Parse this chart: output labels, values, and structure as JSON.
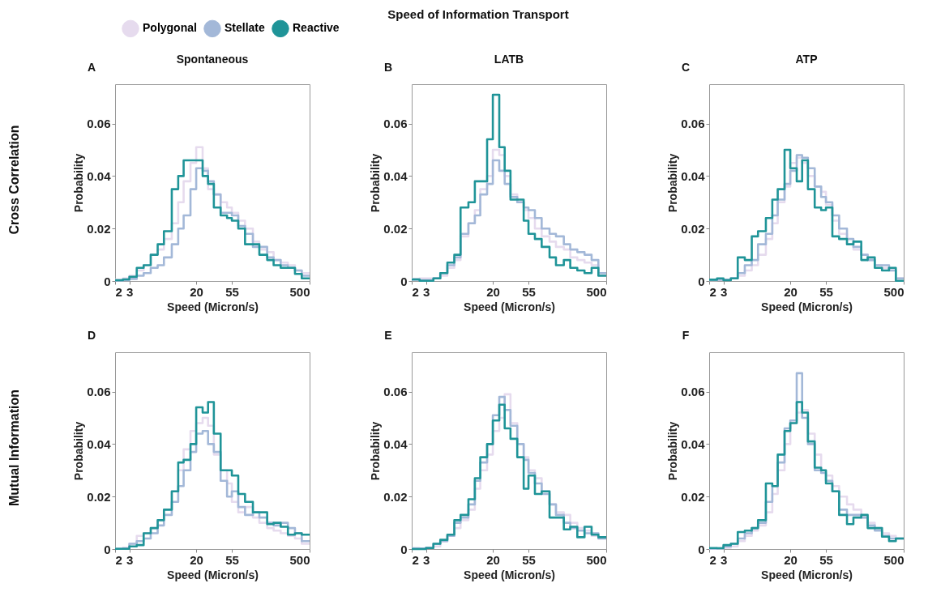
{
  "chart_data": [
    {
      "type": "histogram",
      "title": "A",
      "subtitle": "Spontaneous",
      "xlabel": "Speed (Micron/s)",
      "ylabel": "Probability",
      "log": "x",
      "xlim": [
        2,
        500
      ],
      "xticks": [
        2,
        3,
        20,
        55,
        500
      ],
      "ylim": [
        0,
        0.075
      ],
      "yticks": [
        0,
        0.02,
        0.04,
        0.06
      ],
      "legend": "top",
      "annotations": [
        "Speed of Information Transport",
        "Cross Correlation"
      ],
      "bins": [
        2,
        2.5,
        3,
        3.7,
        4.5,
        5.5,
        6.7,
        8,
        10,
        12,
        14,
        17,
        20,
        24,
        28,
        33,
        40,
        48,
        55,
        66,
        80,
        100,
        120,
        150,
        180,
        220,
        270,
        330,
        400,
        500
      ],
      "series": [
        {
          "name": "Polygonal",
          "color": "#e6dbee",
          "values": [
            0.0005,
            0.001,
            0.002,
            0.004,
            0.006,
            0.01,
            0.012,
            0.016,
            0.022,
            0.03,
            0.038,
            0.045,
            0.051,
            0.043,
            0.035,
            0.033,
            0.03,
            0.028,
            0.026,
            0.023,
            0.02,
            0.015,
            0.012,
            0.011,
            0.008,
            0.007,
            0.006,
            0.004,
            0.003
          ]
        },
        {
          "name": "Stellate",
          "color": "#a3b8d8",
          "values": [
            0.0002,
            0.0003,
            0.0008,
            0.002,
            0.003,
            0.005,
            0.006,
            0.009,
            0.014,
            0.02,
            0.025,
            0.035,
            0.043,
            0.042,
            0.038,
            0.033,
            0.026,
            0.026,
            0.025,
            0.021,
            0.018,
            0.013,
            0.013,
            0.009,
            0.008,
            0.006,
            0.005,
            0.004,
            0.002
          ]
        },
        {
          "name": "Reactive",
          "color": "#1f9498",
          "values": [
            0.0003,
            0.0006,
            0.0016,
            0.005,
            0.006,
            0.01,
            0.014,
            0.019,
            0.035,
            0.04,
            0.046,
            0.046,
            0.046,
            0.04,
            0.037,
            0.028,
            0.025,
            0.024,
            0.023,
            0.02,
            0.014,
            0.014,
            0.01,
            0.008,
            0.006,
            0.005,
            0.005,
            0.0027,
            0.001
          ]
        }
      ]
    },
    {
      "type": "histogram",
      "title": "B",
      "subtitle": "LATB",
      "xlabel": "Speed (Micron/s)",
      "ylabel": "Probability",
      "log": "x",
      "xlim": [
        2,
        500
      ],
      "xticks": [
        2,
        3,
        20,
        55,
        500
      ],
      "ylim": [
        0,
        0.075
      ],
      "yticks": [
        0,
        0.02,
        0.04,
        0.06
      ],
      "bins": [
        2,
        2.5,
        3,
        3.7,
        4.5,
        5.5,
        6.7,
        8,
        10,
        12,
        14,
        17,
        20,
        24,
        28,
        33,
        40,
        48,
        55,
        66,
        80,
        100,
        120,
        150,
        180,
        220,
        270,
        330,
        400,
        500
      ],
      "series": [
        {
          "color": "#e6dbee",
          "values": [
            0.0008,
            0.001,
            0.001,
            0.001,
            0.002,
            0.005,
            0.008,
            0.017,
            0.022,
            0.027,
            0.035,
            0.04,
            0.05,
            0.048,
            0.04,
            0.033,
            0.03,
            0.027,
            0.024,
            0.02,
            0.017,
            0.015,
            0.013,
            0.012,
            0.009,
            0.008,
            0.007,
            0.006,
            0.003
          ]
        },
        {
          "color": "#a3b8d8",
          "values": [
            0.0005,
            0.0003,
            0.0003,
            0.001,
            0.003,
            0.006,
            0.009,
            0.018,
            0.022,
            0.025,
            0.033,
            0.037,
            0.046,
            0.042,
            0.037,
            0.032,
            0.03,
            0.028,
            0.027,
            0.024,
            0.02,
            0.018,
            0.017,
            0.014,
            0.012,
            0.011,
            0.01,
            0.008,
            0.003
          ]
        },
        {
          "color": "#1f9498",
          "values": [
            0.0006,
            0.0001,
            0.0001,
            0.001,
            0.003,
            0.007,
            0.01,
            0.028,
            0.03,
            0.038,
            0.038,
            0.054,
            0.071,
            0.051,
            0.042,
            0.031,
            0.031,
            0.023,
            0.018,
            0.016,
            0.013,
            0.009,
            0.006,
            0.008,
            0.005,
            0.004,
            0.003,
            0.005,
            0.002
          ]
        }
      ]
    },
    {
      "type": "histogram",
      "title": "C",
      "subtitle": "ATP",
      "xlabel": "Speed (Micron/s)",
      "ylabel": "Probability",
      "log": "x",
      "xlim": [
        2,
        500
      ],
      "xticks": [
        2,
        3,
        20,
        55,
        500
      ],
      "ylim": [
        0,
        0.075
      ],
      "yticks": [
        0,
        0.02,
        0.04,
        0.06
      ],
      "bins": [
        2,
        2.5,
        3,
        3.7,
        4.5,
        5.5,
        6.7,
        8,
        10,
        12,
        14,
        17,
        20,
        24,
        28,
        33,
        40,
        48,
        55,
        66,
        80,
        100,
        120,
        150,
        180,
        220,
        270,
        330,
        400,
        500
      ],
      "series": [
        {
          "color": "#e6dbee",
          "values": [
            0.0003,
            0.0005,
            0.0005,
            0.001,
            0.002,
            0.004,
            0.006,
            0.01,
            0.016,
            0.022,
            0.03,
            0.036,
            0.045,
            0.047,
            0.045,
            0.04,
            0.036,
            0.034,
            0.029,
            0.023,
            0.018,
            0.014,
            0.012,
            0.01,
            0.008,
            0.006,
            0.005,
            0.004,
            0.001
          ]
        },
        {
          "color": "#a3b8d8",
          "values": [
            0.0005,
            0.0005,
            0.0005,
            0.001,
            0.003,
            0.006,
            0.008,
            0.014,
            0.018,
            0.025,
            0.031,
            0.037,
            0.042,
            0.048,
            0.047,
            0.043,
            0.036,
            0.032,
            0.03,
            0.025,
            0.02,
            0.016,
            0.013,
            0.01,
            0.008,
            0.006,
            0.006,
            0.004,
            0.001
          ]
        },
        {
          "color": "#1f9498",
          "values": [
            0.0005,
            0.001,
            0.0003,
            0.001,
            0.009,
            0.008,
            0.017,
            0.019,
            0.024,
            0.031,
            0.035,
            0.05,
            0.043,
            0.038,
            0.046,
            0.035,
            0.028,
            0.027,
            0.028,
            0.017,
            0.016,
            0.014,
            0.015,
            0.008,
            0.009,
            0.005,
            0.004,
            0.005,
            0.0001
          ]
        }
      ]
    },
    {
      "type": "histogram",
      "title": "D",
      "xlabel": "Speed (Micron/s)",
      "ylabel": "Probability",
      "log": "x",
      "xlim": [
        2,
        500
      ],
      "xticks": [
        2,
        3,
        20,
        55,
        500
      ],
      "ylim": [
        0,
        0.075
      ],
      "yticks": [
        0,
        0.02,
        0.04,
        0.06
      ],
      "annotations": [
        "Mutual Information"
      ],
      "bins": [
        2,
        2.5,
        3,
        3.7,
        4.5,
        5.5,
        6.7,
        8,
        10,
        12,
        14,
        17,
        20,
        24,
        28,
        33,
        40,
        48,
        55,
        66,
        80,
        100,
        120,
        150,
        180,
        220,
        270,
        330,
        400,
        500
      ],
      "series": [
        {
          "color": "#e6dbee",
          "values": [
            0.0001,
            0.0005,
            0.002,
            0.005,
            0.006,
            0.008,
            0.011,
            0.015,
            0.022,
            0.03,
            0.038,
            0.045,
            0.048,
            0.05,
            0.047,
            0.036,
            0.03,
            0.025,
            0.018,
            0.014,
            0.016,
            0.012,
            0.01,
            0.008,
            0.007,
            0.006,
            0.005,
            0.004,
            0.002
          ]
        },
        {
          "color": "#a3b8d8",
          "values": [
            0.0001,
            0.0002,
            0.002,
            0.003,
            0.004,
            0.006,
            0.009,
            0.013,
            0.018,
            0.024,
            0.03,
            0.037,
            0.044,
            0.045,
            0.04,
            0.037,
            0.026,
            0.02,
            0.022,
            0.016,
            0.013,
            0.014,
            0.012,
            0.01,
            0.009,
            0.01,
            0.008,
            0.006,
            0.003
          ]
        },
        {
          "color": "#1f9498",
          "values": [
            0.0001,
            0.0001,
            0.001,
            0.0015,
            0.006,
            0.008,
            0.011,
            0.015,
            0.022,
            0.033,
            0.034,
            0.04,
            0.054,
            0.052,
            0.056,
            0.044,
            0.03,
            0.03,
            0.028,
            0.021,
            0.018,
            0.014,
            0.014,
            0.0095,
            0.01,
            0.0085,
            0.0055,
            0.006,
            0.0055
          ]
        }
      ]
    },
    {
      "type": "histogram",
      "title": "E",
      "xlabel": "Speed (Micron/s)",
      "ylabel": "Probability",
      "log": "x",
      "xlim": [
        2,
        500
      ],
      "xticks": [
        2,
        3,
        20,
        55,
        500
      ],
      "ylim": [
        0,
        0.075
      ],
      "yticks": [
        0,
        0.02,
        0.04,
        0.06
      ],
      "bins": [
        2,
        2.5,
        3,
        3.7,
        4.5,
        5.5,
        6.7,
        8,
        10,
        12,
        14,
        17,
        20,
        24,
        28,
        33,
        40,
        48,
        55,
        66,
        80,
        100,
        120,
        150,
        180,
        220,
        270,
        330,
        400,
        500
      ],
      "series": [
        {
          "color": "#e6dbee",
          "values": [
            0.0002,
            0.0002,
            0.0005,
            0.001,
            0.003,
            0.005,
            0.008,
            0.011,
            0.015,
            0.023,
            0.03,
            0.036,
            0.045,
            0.05,
            0.059,
            0.048,
            0.04,
            0.035,
            0.03,
            0.027,
            0.022,
            0.017,
            0.014,
            0.013,
            0.01,
            0.008,
            0.007,
            0.005,
            0.004
          ]
        },
        {
          "color": "#a3b8d8",
          "values": [
            0.0003,
            0.0002,
            0.0005,
            0.002,
            0.003,
            0.005,
            0.01,
            0.012,
            0.017,
            0.026,
            0.033,
            0.04,
            0.051,
            0.058,
            0.053,
            0.047,
            0.04,
            0.034,
            0.029,
            0.025,
            0.021,
            0.017,
            0.013,
            0.01,
            0.008,
            0.007,
            0.006,
            0.006,
            0.004
          ]
        },
        {
          "color": "#1f9498",
          "values": [
            0,
            0,
            0.0004,
            0.002,
            0.0035,
            0.0055,
            0.011,
            0.013,
            0.019,
            0.027,
            0.035,
            0.04,
            0.049,
            0.055,
            0.046,
            0.042,
            0.035,
            0.023,
            0.028,
            0.021,
            0.022,
            0.012,
            0.012,
            0.0075,
            0.0085,
            0.0045,
            0.0085,
            0.0055,
            0.0045
          ]
        }
      ]
    },
    {
      "type": "histogram",
      "title": "F",
      "xlabel": "Speed (Micron/s)",
      "ylabel": "Probability",
      "log": "x",
      "xlim": [
        2,
        500
      ],
      "xticks": [
        2,
        3,
        20,
        55,
        500
      ],
      "ylim": [
        0,
        0.075
      ],
      "yticks": [
        0,
        0.02,
        0.04,
        0.06
      ],
      "bins": [
        2,
        2.5,
        3,
        3.7,
        4.5,
        5.5,
        6.7,
        8,
        10,
        12,
        14,
        17,
        20,
        24,
        28,
        33,
        40,
        48,
        55,
        66,
        80,
        100,
        120,
        150,
        180,
        220,
        270,
        330,
        400,
        500
      ],
      "series": [
        {
          "color": "#e6dbee",
          "values": [
            0.0001,
            0.0002,
            0.0005,
            0.001,
            0.003,
            0.005,
            0.007,
            0.009,
            0.014,
            0.021,
            0.03,
            0.04,
            0.048,
            0.052,
            0.053,
            0.044,
            0.036,
            0.03,
            0.028,
            0.024,
            0.02,
            0.017,
            0.015,
            0.012,
            0.01,
            0.008,
            0.006,
            0.005,
            0.004
          ]
        },
        {
          "color": "#a3b8d8",
          "values": [
            0.0002,
            0.0003,
            0.001,
            0.002,
            0.004,
            0.006,
            0.008,
            0.01,
            0.018,
            0.024,
            0.033,
            0.046,
            0.049,
            0.067,
            0.05,
            0.04,
            0.03,
            0.029,
            0.026,
            0.022,
            0.015,
            0.013,
            0.013,
            0.012,
            0.009,
            0.007,
            0.005,
            0.004,
            0.004
          ]
        },
        {
          "color": "#1f9498",
          "values": [
            0.0004,
            0.0003,
            0.0015,
            0.002,
            0.0065,
            0.007,
            0.008,
            0.011,
            0.025,
            0.024,
            0.036,
            0.045,
            0.048,
            0.056,
            0.052,
            0.041,
            0.031,
            0.03,
            0.025,
            0.022,
            0.013,
            0.0095,
            0.012,
            0.013,
            0.008,
            0.008,
            0.0047,
            0.003,
            0.004
          ]
        }
      ]
    }
  ]
}
